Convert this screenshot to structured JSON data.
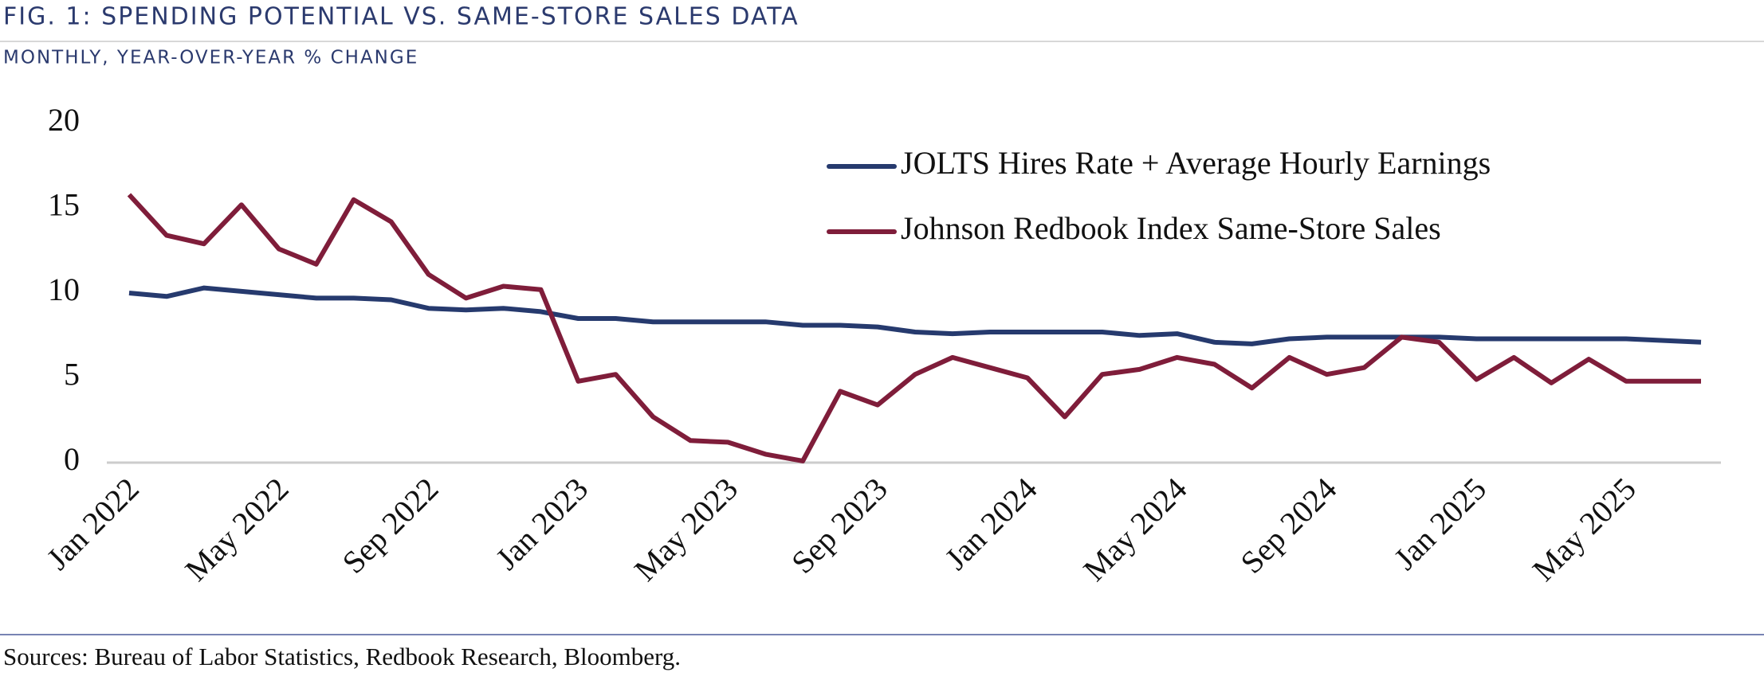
{
  "chart_data": {
    "type": "line",
    "title": "FIG. 1: SPENDING POTENTIAL VS. SAME-STORE SALES DATA",
    "subtitle": "MONTHLY, YEAR-OVER-YEAR % CHANGE",
    "source": "Sources: Bureau of Labor Statistics, Redbook Research, Bloomberg.",
    "categories": [
      "Jan 2022",
      null,
      null,
      null,
      "May 2022",
      null,
      null,
      null,
      "Sep 2022",
      null,
      null,
      null,
      "Jan 2023",
      null,
      null,
      null,
      "May 2023",
      null,
      null,
      null,
      "Sep 2023",
      null,
      null,
      null,
      "Jan 2024",
      null,
      null,
      null,
      "May 2024",
      null,
      null,
      null,
      "Sep 2024",
      null,
      null,
      null,
      "Jan 2025",
      null,
      null,
      null,
      "May 2025",
      null,
      null
    ],
    "series": [
      {
        "name": "JOLTS Hires Rate + Average Hourly Earnings",
        "color": "#263a6e",
        "values": [
          10.0,
          9.8,
          10.3,
          10.1,
          9.9,
          9.7,
          9.7,
          9.6,
          9.1,
          9.0,
          9.1,
          8.9,
          8.5,
          8.5,
          8.3,
          8.3,
          8.3,
          8.3,
          8.1,
          8.1,
          8.0,
          7.7,
          7.6,
          7.7,
          7.7,
          7.7,
          7.7,
          7.5,
          7.6,
          7.1,
          7.0,
          7.3,
          7.4,
          7.4,
          7.4,
          7.4,
          7.3,
          7.3,
          7.3,
          7.3,
          7.3,
          7.2,
          7.1
        ]
      },
      {
        "name": "Johnson Redbook Index Same-Store Sales",
        "color": "#7f1d3a",
        "values": [
          15.8,
          13.4,
          12.9,
          15.2,
          12.6,
          11.7,
          15.5,
          14.2,
          11.1,
          9.7,
          10.4,
          10.2,
          4.8,
          5.2,
          2.7,
          1.3,
          1.2,
          0.5,
          0.1,
          4.2,
          3.4,
          5.2,
          6.2,
          5.6,
          5.0,
          2.7,
          5.2,
          5.5,
          6.2,
          5.8,
          4.4,
          6.2,
          5.2,
          5.6,
          7.4,
          7.1,
          4.9,
          6.2,
          4.7,
          6.1,
          4.8,
          4.8,
          4.8
        ]
      }
    ],
    "ylim": [
      0,
      20
    ],
    "yticks": [
      0,
      5,
      10,
      15,
      20
    ],
    "legend": "upper right"
  }
}
